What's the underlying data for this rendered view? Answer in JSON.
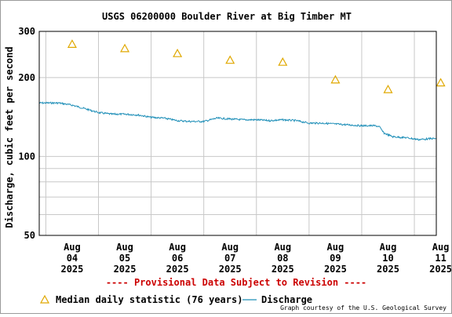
{
  "chart_data": {
    "type": "line",
    "title": "USGS 06200000 Boulder River at Big Timber MT",
    "ylabel": "Discharge, cubic feet per second",
    "xlabel": "",
    "y_scale": "log",
    "ylim": [
      50,
      300
    ],
    "y_ticks": [
      "300",
      "200",
      "100",
      "50"
    ],
    "y_tick_values": [
      300,
      200,
      100,
      50
    ],
    "x_range": [
      "2025-08-03T21:00",
      "2025-08-11T10:00"
    ],
    "x_ticks": [
      {
        "month": "Aug",
        "day": "04",
        "year": "2025",
        "date": "2025-08-04T12:00"
      },
      {
        "month": "Aug",
        "day": "05",
        "year": "2025",
        "date": "2025-08-05T12:00"
      },
      {
        "month": "Aug",
        "day": "06",
        "year": "2025",
        "date": "2025-08-06T12:00"
      },
      {
        "month": "Aug",
        "day": "07",
        "year": "2025",
        "date": "2025-08-07T12:00"
      },
      {
        "month": "Aug",
        "day": "08",
        "year": "2025",
        "date": "2025-08-08T12:00"
      },
      {
        "month": "Aug",
        "day": "09",
        "year": "2025",
        "date": "2025-08-09T12:00"
      },
      {
        "month": "Aug",
        "day": "10",
        "year": "2025",
        "date": "2025-08-10T12:00"
      },
      {
        "month": "Aug",
        "day": "11",
        "year": "2025",
        "date": "2025-08-11T12:00"
      }
    ],
    "grid": true,
    "series": [
      {
        "name": "Median daily statistic (76 years)",
        "marker": "triangle",
        "color": "#e0a800",
        "points": [
          {
            "x": "2025-08-04T12:00",
            "y": 268
          },
          {
            "x": "2025-08-05T12:00",
            "y": 258
          },
          {
            "x": "2025-08-06T12:00",
            "y": 247
          },
          {
            "x": "2025-08-07T12:00",
            "y": 233
          },
          {
            "x": "2025-08-08T12:00",
            "y": 229
          },
          {
            "x": "2025-08-09T12:00",
            "y": 196
          },
          {
            "x": "2025-08-10T12:00",
            "y": 180
          },
          {
            "x": "2025-08-11T12:00",
            "y": 191
          }
        ]
      },
      {
        "name": "Discharge",
        "marker": "line",
        "color": "#1f8fb8",
        "points": [
          {
            "x": "2025-08-03T21:00",
            "y": 160
          },
          {
            "x": "2025-08-04T06:00",
            "y": 160
          },
          {
            "x": "2025-08-04T12:00",
            "y": 157
          },
          {
            "x": "2025-08-04T18:00",
            "y": 152
          },
          {
            "x": "2025-08-05T00:00",
            "y": 147
          },
          {
            "x": "2025-08-05T06:00",
            "y": 145
          },
          {
            "x": "2025-08-05T12:00",
            "y": 145
          },
          {
            "x": "2025-08-05T18:00",
            "y": 144
          },
          {
            "x": "2025-08-06T00:00",
            "y": 141
          },
          {
            "x": "2025-08-06T06:00",
            "y": 140
          },
          {
            "x": "2025-08-06T12:00",
            "y": 137
          },
          {
            "x": "2025-08-06T18:00",
            "y": 136
          },
          {
            "x": "2025-08-07T00:00",
            "y": 136
          },
          {
            "x": "2025-08-07T06:00",
            "y": 140
          },
          {
            "x": "2025-08-07T12:00",
            "y": 139
          },
          {
            "x": "2025-08-07T18:00",
            "y": 138
          },
          {
            "x": "2025-08-08T00:00",
            "y": 138
          },
          {
            "x": "2025-08-08T06:00",
            "y": 137
          },
          {
            "x": "2025-08-08T12:00",
            "y": 138
          },
          {
            "x": "2025-08-08T18:00",
            "y": 137
          },
          {
            "x": "2025-08-09T00:00",
            "y": 134
          },
          {
            "x": "2025-08-09T06:00",
            "y": 134
          },
          {
            "x": "2025-08-09T12:00",
            "y": 133
          },
          {
            "x": "2025-08-09T18:00",
            "y": 132
          },
          {
            "x": "2025-08-10T00:00",
            "y": 131
          },
          {
            "x": "2025-08-10T06:00",
            "y": 131
          },
          {
            "x": "2025-08-10T08:00",
            "y": 130
          },
          {
            "x": "2025-08-10T10:00",
            "y": 123
          },
          {
            "x": "2025-08-10T14:00",
            "y": 119
          },
          {
            "x": "2025-08-10T20:00",
            "y": 118
          },
          {
            "x": "2025-08-11T02:00",
            "y": 116
          },
          {
            "x": "2025-08-11T08:00",
            "y": 117
          },
          {
            "x": "2025-08-11T10:00",
            "y": 117
          }
        ]
      }
    ]
  },
  "footer": {
    "provisional": "---- Provisional Data Subject to Revision ----",
    "credit": "Graph courtesy of the U.S. Geological Survey"
  },
  "colors": {
    "grid": "#c8c8c8",
    "provisional": "#cc0000",
    "axis": "#000000"
  }
}
